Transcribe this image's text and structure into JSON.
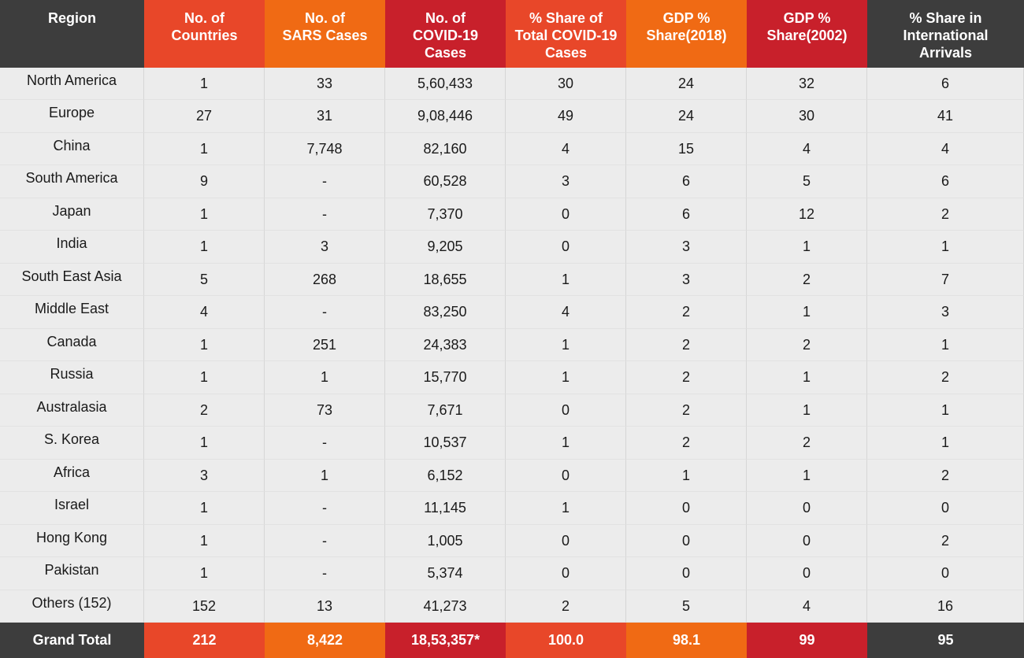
{
  "chart_data": {
    "type": "table",
    "columns": [
      {
        "key": "region",
        "label": "Region",
        "color": "#3d3d3d"
      },
      {
        "key": "countries",
        "label": "No. of\nCountries",
        "color": "#e84729"
      },
      {
        "key": "sars",
        "label": "No. of\nSARS Cases",
        "color": "#f06a14"
      },
      {
        "key": "covid",
        "label": "No. of\nCOVID-19\nCases",
        "color": "#c8202b"
      },
      {
        "key": "covid_share",
        "label": "% Share of\nTotal COVID-19\nCases",
        "color": "#e84729"
      },
      {
        "key": "gdp2018",
        "label": "GDP %\nShare(2018)",
        "color": "#f06a14"
      },
      {
        "key": "gdp2002",
        "label": "GDP %\nShare(2002)",
        "color": "#c8202b"
      },
      {
        "key": "arrivals",
        "label": "% Share in\nInternational\nArrivals",
        "color": "#3d3d3d"
      }
    ],
    "rows": [
      [
        "North America",
        "1",
        "33",
        "5,60,433",
        "30",
        "24",
        "32",
        "6"
      ],
      [
        "Europe",
        "27",
        "31",
        "9,08,446",
        "49",
        "24",
        "30",
        "41"
      ],
      [
        "China",
        "1",
        "7,748",
        "82,160",
        "4",
        "15",
        "4",
        "4"
      ],
      [
        "South America",
        "9",
        "-",
        "60,528",
        "3",
        "6",
        "5",
        "6"
      ],
      [
        "Japan",
        "1",
        "-",
        "7,370",
        "0",
        "6",
        "12",
        "2"
      ],
      [
        "India",
        "1",
        "3",
        "9,205",
        "0",
        "3",
        "1",
        "1"
      ],
      [
        "South East Asia",
        "5",
        "268",
        "18,655",
        "1",
        "3",
        "2",
        "7"
      ],
      [
        "Middle East",
        "4",
        "-",
        "83,250",
        "4",
        "2",
        "1",
        "3"
      ],
      [
        "Canada",
        "1",
        "251",
        "24,383",
        "1",
        "2",
        "2",
        "1"
      ],
      [
        "Russia",
        "1",
        "1",
        "15,770",
        "1",
        "2",
        "1",
        "2"
      ],
      [
        "Australasia",
        "2",
        "73",
        "7,671",
        "0",
        "2",
        "1",
        "1"
      ],
      [
        "S. Korea",
        "1",
        "-",
        "10,537",
        "1",
        "2",
        "2",
        "1"
      ],
      [
        "Africa",
        "3",
        "1",
        "6,152",
        "0",
        "1",
        "1",
        "2"
      ],
      [
        "Israel",
        "1",
        "-",
        "11,145",
        "1",
        "0",
        "0",
        "0"
      ],
      [
        "Hong Kong",
        "1",
        "-",
        "1,005",
        "0",
        "0",
        "0",
        "2"
      ],
      [
        "Pakistan",
        "1",
        "-",
        "5,374",
        "0",
        "0",
        "0",
        "0"
      ],
      [
        "Others (152)",
        "152",
        "13",
        "41,273",
        "2",
        "5",
        "4",
        "16"
      ]
    ],
    "total_row": [
      "Grand Total",
      "212",
      "8,422",
      "18,53,357*",
      "100.0",
      "98.1",
      "99",
      "95"
    ]
  }
}
